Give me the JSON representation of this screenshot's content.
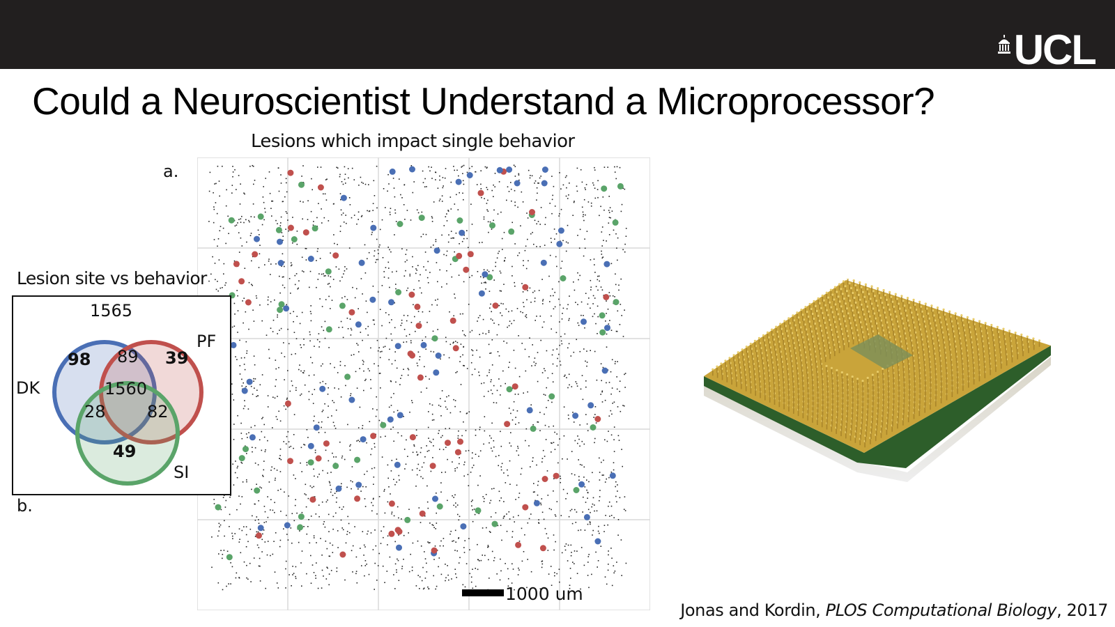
{
  "header": {
    "logo_text": "UCL",
    "title": "Could a Neuroscientist Understand a Microprocessor?"
  },
  "figure_a": {
    "label": "a.",
    "title": "Lesions which impact single behavior",
    "scale_label": "1000 um",
    "colors": {
      "DK": "#4a6fb5",
      "PF": "#c0504d",
      "SI": "#5aa469"
    }
  },
  "figure_b": {
    "label": "b.",
    "title": "Lesion site vs behavior",
    "total": "1565",
    "sets": {
      "DK": "DK",
      "PF": "PF",
      "SI": "SI"
    },
    "regions": {
      "dk_only": "98",
      "pf_only": "39",
      "si_only": "49",
      "dk_pf": "89",
      "dk_si": "28",
      "pf_si": "82",
      "all": "1560"
    },
    "colors": {
      "DK": "#4a6fb5",
      "PF": "#c0504d",
      "SI": "#5aa469"
    }
  },
  "citation": {
    "authors": "Jonas and Kordin, ",
    "journal": "PLOS Computational Biology",
    "year": ", 2017"
  }
}
